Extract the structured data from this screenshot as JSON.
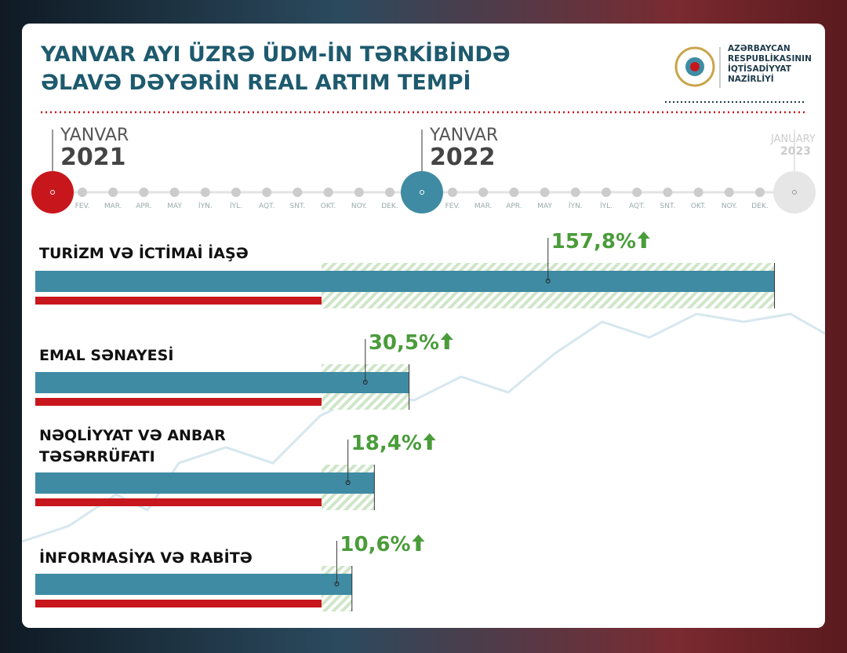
{
  "header": {
    "title_lines": [
      "YANVAR AYI ÜZRƏ ÜDM-İN TƏRKİBİNDƏ",
      "ƏLAVƏ DƏYƏRİN REAL ARTIM TEMPİ"
    ]
  },
  "logo": {
    "lines": [
      "AZƏRBAYCAN",
      "RESPUBLİKASININ",
      "İQTİSADİYYAT",
      "NAZİRLİYİ"
    ]
  },
  "timeline": {
    "years": [
      {
        "month": "YANVAR",
        "year": "2021"
      },
      {
        "month": "YANVAR",
        "year": "2022"
      },
      {
        "month": "JANUARY",
        "year": "2023"
      }
    ],
    "months": [
      "FEV.",
      "MAR.",
      "APR.",
      "MAY",
      "İYN.",
      "İYL.",
      "AQT.",
      "SNT.",
      "OKT.",
      "NOY.",
      "DEK."
    ]
  },
  "chart_data": {
    "type": "bar",
    "orientation": "horizontal",
    "categories": [
      "TURİZM VƏ İCTİMAİ İAŞƏ",
      "EMAL SƏNAYESİ",
      "NƏQLİYYAT VƏ ANBAR TƏSƏRRÜFATI",
      "İNFORMASİYA VƏ RABİTƏ"
    ],
    "values": [
      157.8,
      30.5,
      18.4,
      10.6
    ],
    "value_labels": [
      "157,8%",
      "30,5%",
      "18,4%",
      "10,6%"
    ],
    "colors": {
      "base": "#3f8ba3",
      "previous": "#c8161d",
      "growth": "#4a9c3a"
    }
  }
}
